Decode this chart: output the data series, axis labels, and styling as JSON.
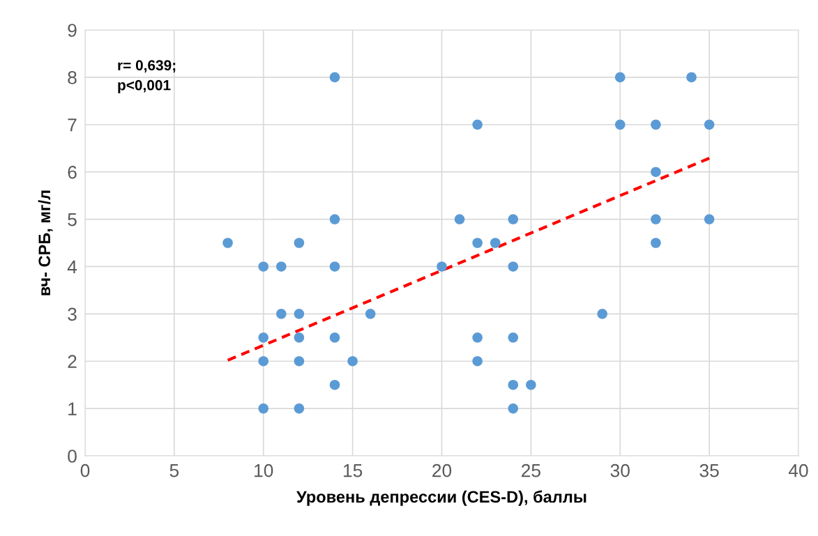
{
  "chart_data": {
    "type": "scatter",
    "xlabel": "Уровень депрессии (CES-D), баллы",
    "ylabel": "вч- СРБ, мг/л",
    "xlim": [
      0,
      40
    ],
    "xticks": [
      0,
      5,
      10,
      15,
      20,
      25,
      30,
      35,
      40
    ],
    "ylim": [
      0,
      9
    ],
    "yticks": [
      0,
      1,
      2,
      3,
      4,
      5,
      6,
      7,
      8,
      9
    ],
    "grid": true,
    "annotations": [
      "r= 0,639;\np<0,001"
    ],
    "series": [
      {
        "color": "#5b9bd5",
        "marker": "circle",
        "x": [
          8,
          10,
          10,
          10,
          10,
          11,
          11,
          12,
          12,
          12,
          12,
          12,
          14,
          14,
          14,
          14,
          14,
          15,
          16,
          20,
          21,
          22,
          22,
          22,
          22,
          23,
          24,
          24,
          24,
          24,
          24,
          25,
          29,
          30,
          30,
          32,
          32,
          32,
          32,
          34,
          35,
          35
        ],
        "values": [
          4.5,
          4,
          2.5,
          2,
          1,
          4,
          3,
          4.5,
          3,
          2.5,
          2,
          1,
          8,
          5,
          4,
          2.5,
          1.5,
          2,
          3,
          4,
          5,
          7,
          4.5,
          2.5,
          2,
          4.5,
          5,
          4,
          2.5,
          1.5,
          1,
          1.5,
          3,
          8,
          7,
          7,
          6,
          5,
          4.5,
          8,
          7,
          5
        ]
      },
      {
        "type": "line",
        "color": "#ff0000",
        "line_style": "dashed",
        "x": [
          8,
          35
        ],
        "values": [
          2.02,
          6.29
        ]
      }
    ]
  }
}
